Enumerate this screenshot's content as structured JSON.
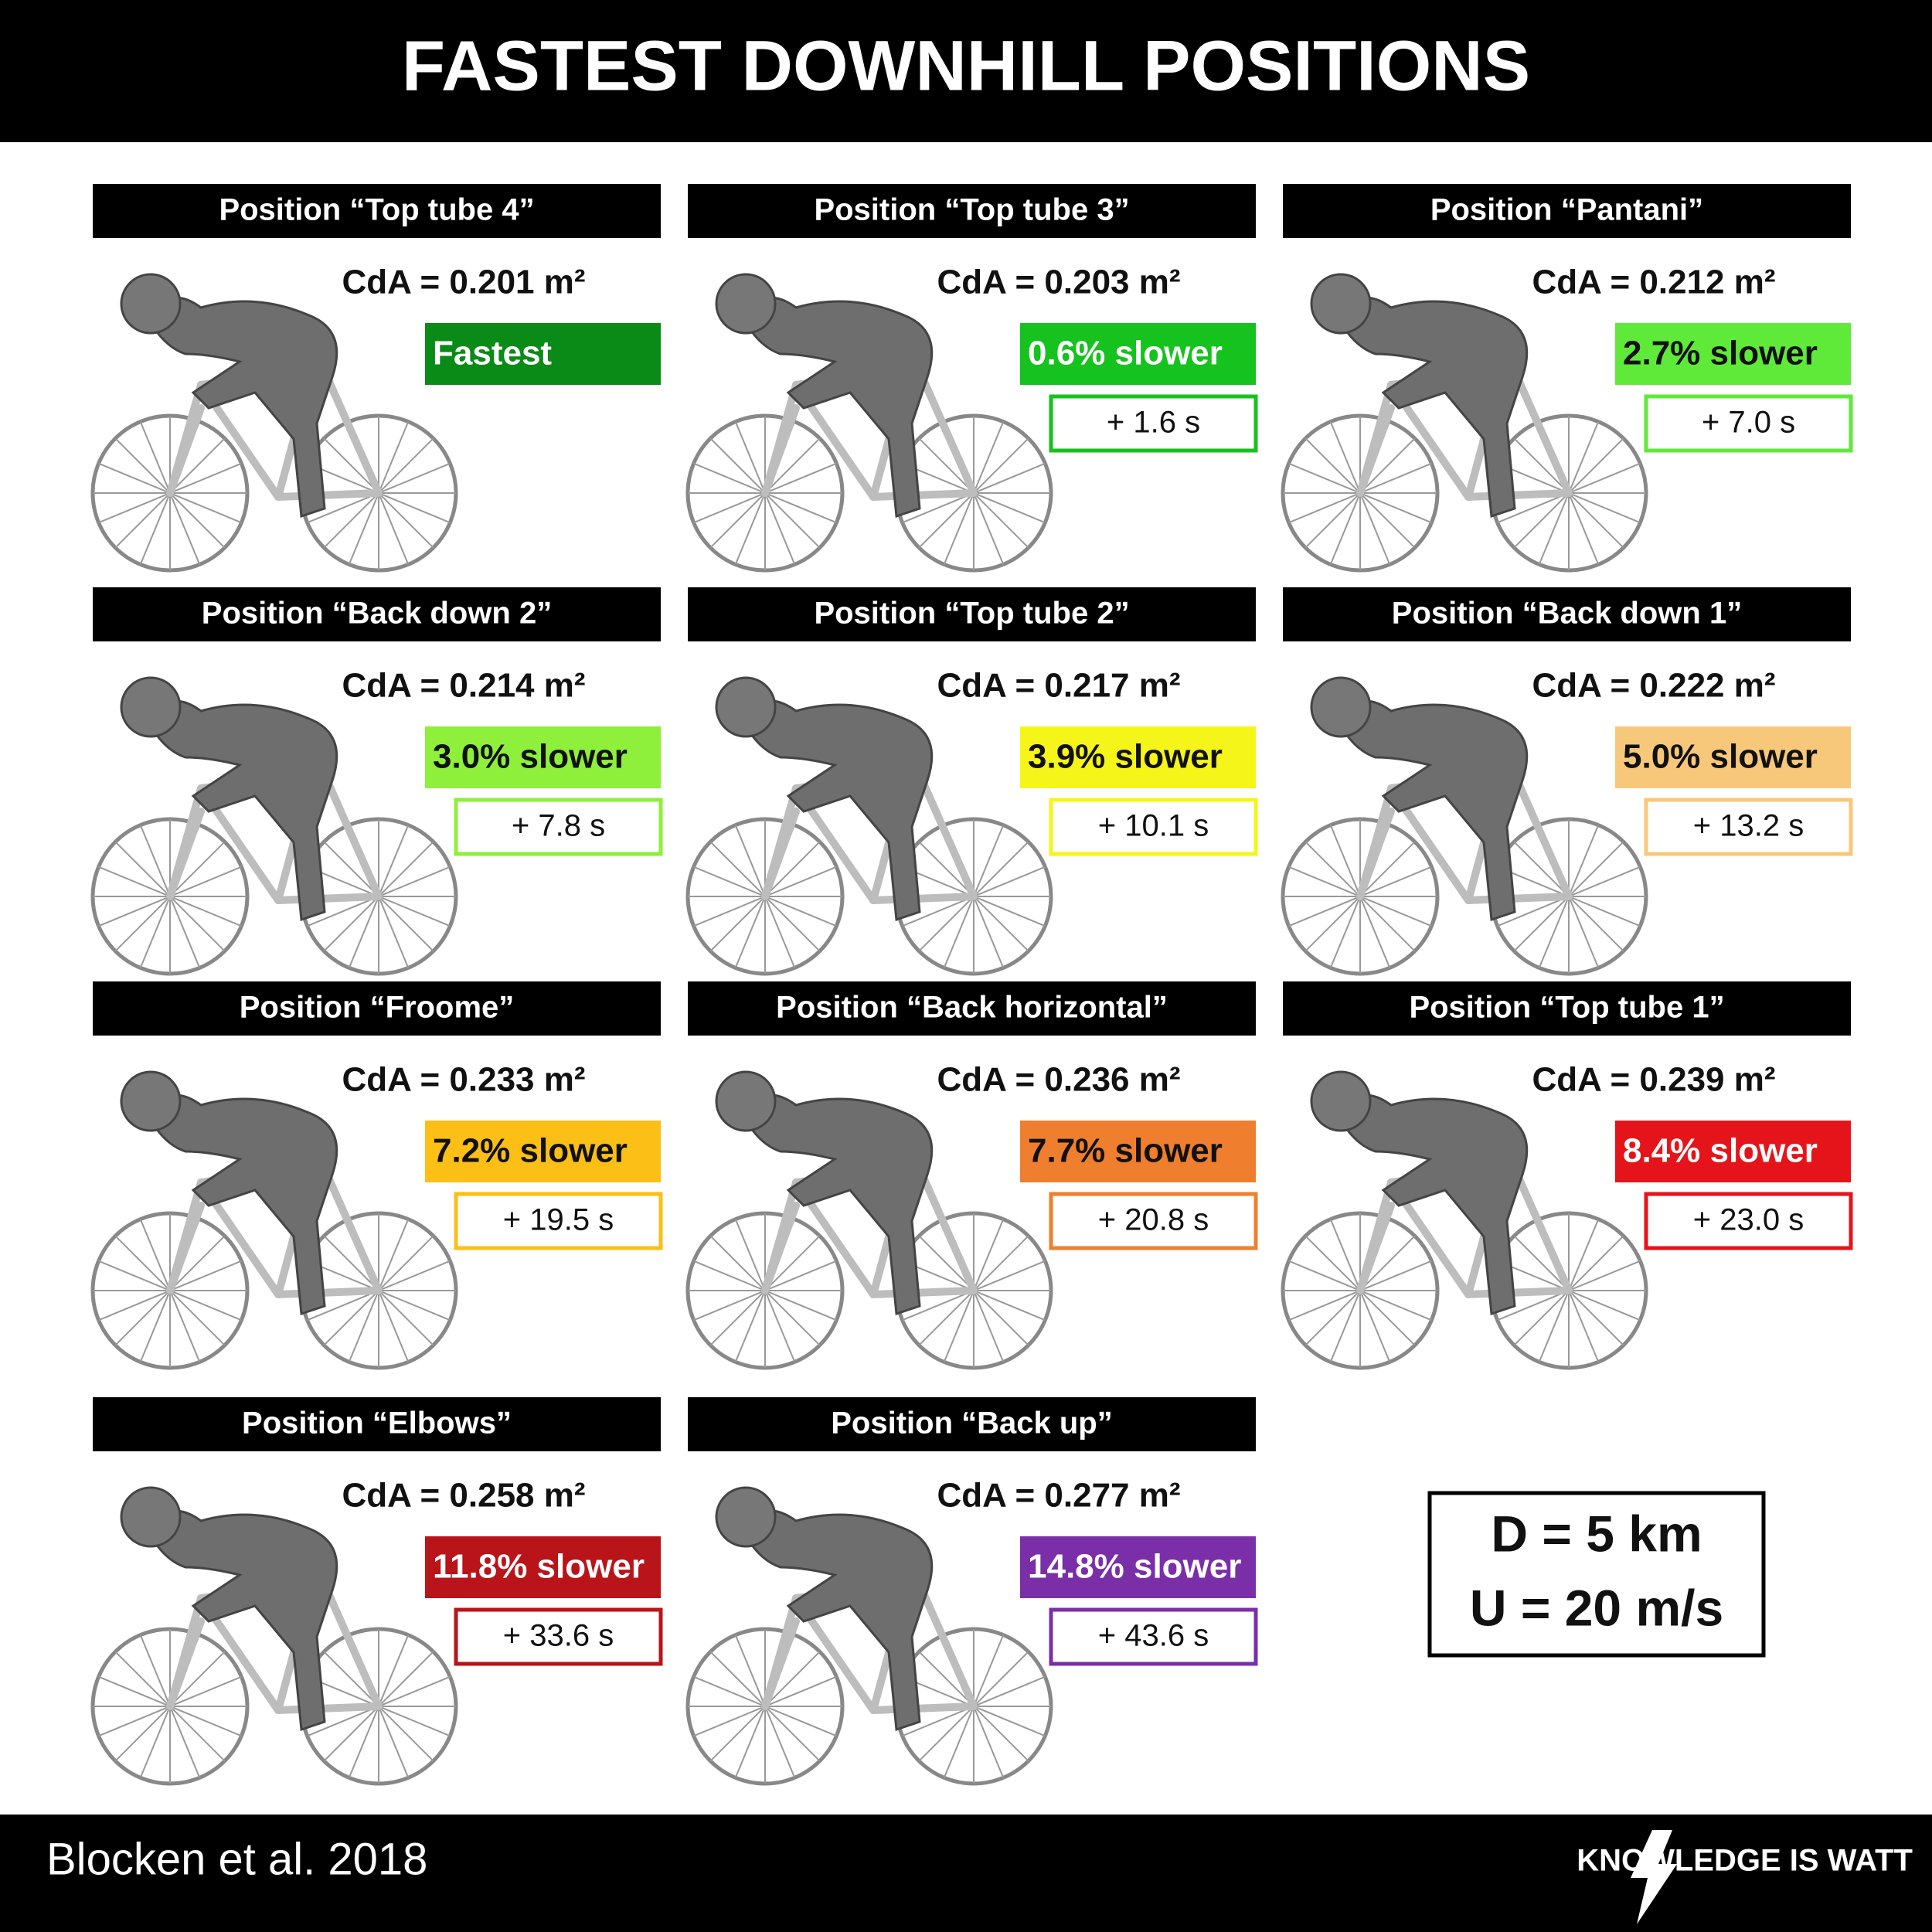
{
  "header": {
    "title": "FASTEST DOWNHILL POSITIONS"
  },
  "panels": [
    {
      "name": "Position “Top tube 4”",
      "cda": "CdA = 0.201 m²",
      "badge": "Fastest",
      "color": "#0a8a16"
    },
    {
      "name": "Position “Top tube 3”",
      "cda": "CdA = 0.203 m²",
      "badge": "0.6% slower",
      "time": "+ 1.6 s",
      "color": "#16c21d"
    },
    {
      "name": "Position “Pantani”",
      "cda": "CdA = 0.212 m²",
      "badge": "2.7% slower",
      "time": "+ 7.0 s",
      "color": "#5fea3a"
    },
    {
      "name": "Position “Back down 2”",
      "cda": "CdA = 0.214 m²",
      "badge": "3.0% slower",
      "time": "+ 7.8 s",
      "color": "#8ef03a"
    },
    {
      "name": "Position “Top tube 2”",
      "cda": "CdA = 0.217 m²",
      "badge": "3.9% slower",
      "time": "+ 10.1 s",
      "color": "#f5f51a"
    },
    {
      "name": "Position “Back down 1”",
      "cda": "CdA = 0.222 m²",
      "badge": "5.0% slower",
      "time": "+ 13.2 s",
      "color": "#f8c87a"
    },
    {
      "name": "Position “Froome”",
      "cda": "CdA = 0.233 m²",
      "badge": "7.2% slower",
      "time": "+ 19.5 s",
      "color": "#fbbf16"
    },
    {
      "name": "Position “Back horizontal”",
      "cda": "CdA = 0.236 m²",
      "badge": "7.7% slower",
      "time": "+ 20.8 s",
      "color": "#ef7f2e"
    },
    {
      "name": "Position “Top tube 1”",
      "cda": "CdA = 0.239 m²",
      "badge": "8.4% slower",
      "time": "+ 23.0 s",
      "color": "#e5141a"
    },
    {
      "name": "Position “Elbows”",
      "cda": "CdA = 0.258 m²",
      "badge": "11.8% slower",
      "time": "+ 33.6 s",
      "color": "#b8141a"
    },
    {
      "name": "Position “Back up”",
      "cda": "CdA = 0.277 m²",
      "badge": "14.8% slower",
      "time": "+ 43.6 s",
      "color": "#7a2fa8"
    }
  ],
  "conditions": {
    "distance": "D = 5 km",
    "speed": "U = 20 m/s"
  },
  "footer": {
    "source": "Blocken et al. 2018",
    "brand": "KNOWLEDGE IS WATT"
  }
}
